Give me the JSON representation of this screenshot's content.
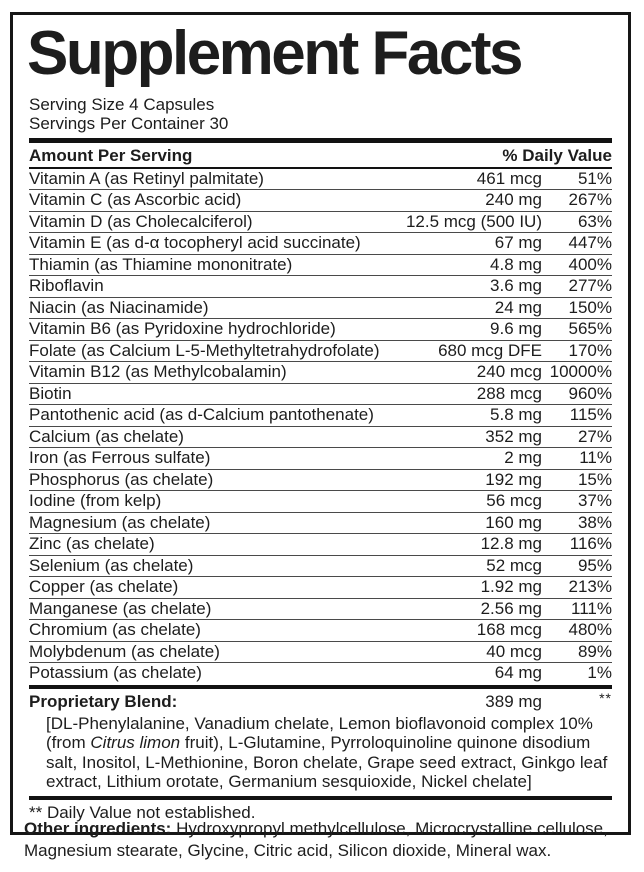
{
  "label": {
    "title": "Supplement Facts",
    "serving_size": "Serving Size 4 Capsules",
    "servings_per_container": "Servings Per Container 30",
    "columns": {
      "amount_header": "Amount Per Serving",
      "dv_header": "% Daily Value"
    },
    "rows": [
      {
        "name": "Vitamin A (as Retinyl palmitate)",
        "amount": "461 mcg",
        "dv": "51%"
      },
      {
        "name": "Vitamin C (as Ascorbic acid)",
        "amount": "240 mg",
        "dv": "267%"
      },
      {
        "name": "Vitamin D (as Cholecalciferol)",
        "amount": "12.5 mcg (500 IU)",
        "dv": "63%"
      },
      {
        "name": "Vitamin E (as d-α tocopheryl acid succinate)",
        "amount": "67 mg",
        "dv": "447%"
      },
      {
        "name": "Thiamin (as Thiamine mononitrate)",
        "amount": "4.8 mg",
        "dv": "400%"
      },
      {
        "name": "Riboflavin",
        "amount": "3.6 mg",
        "dv": "277%"
      },
      {
        "name": "Niacin (as Niacinamide)",
        "amount": "24 mg",
        "dv": "150%"
      },
      {
        "name": "Vitamin B6 (as Pyridoxine hydrochloride)",
        "amount": "9.6 mg",
        "dv": "565%"
      },
      {
        "name": "Folate (as Calcium L-5-Methyltetrahydrofolate)",
        "amount": "680 mcg DFE",
        "dv": "170%"
      },
      {
        "name": "Vitamin B12 (as Methylcobalamin)",
        "amount": "240 mcg",
        "dv": "10000%"
      },
      {
        "name": "Biotin",
        "amount": "288 mcg",
        "dv": "960%"
      },
      {
        "name": "Pantothenic acid (as d-Calcium pantothenate)",
        "amount": "5.8 mg",
        "dv": "115%"
      },
      {
        "name": "Calcium (as chelate)",
        "amount": "352 mg",
        "dv": "27%"
      },
      {
        "name": "Iron (as Ferrous sulfate)",
        "amount": "2 mg",
        "dv": "11%"
      },
      {
        "name": "Phosphorus (as chelate)",
        "amount": "192 mg",
        "dv": "15%"
      },
      {
        "name": "Iodine (from kelp)",
        "amount": "56 mcg",
        "dv": "37%"
      },
      {
        "name": "Magnesium (as chelate)",
        "amount": "160 mg",
        "dv": "38%"
      },
      {
        "name": "Zinc (as chelate)",
        "amount": "12.8 mg",
        "dv": "116%"
      },
      {
        "name": "Selenium (as chelate)",
        "amount": "52 mcg",
        "dv": "95%"
      },
      {
        "name": "Copper (as chelate)",
        "amount": "1.92 mg",
        "dv": "213%"
      },
      {
        "name": "Manganese (as chelate)",
        "amount": "2.56 mg",
        "dv": "111%"
      },
      {
        "name": "Chromium (as chelate)",
        "amount": "168 mcg",
        "dv": "480%"
      },
      {
        "name": "Molybdenum (as chelate)",
        "amount": "40 mcg",
        "dv": "89%"
      },
      {
        "name": "Potassium (as chelate)",
        "amount": "64 mg",
        "dv": "1%"
      }
    ],
    "blend": {
      "name": "Proprietary Blend:",
      "amount": "389 mg",
      "dv": "**",
      "ingredients_prefix": "[DL-Phenylalanine, Vanadium chelate, Lemon bioflavonoid complex 10% (from ",
      "ingredients_italic": "Citrus limon",
      "ingredients_suffix": " fruit), L-Glutamine, Pyrroloquinoline quinone disodium salt, Inositol, L-Methionine, Boron chelate, Grape seed extract, Ginkgo leaf extract, Lithium orotate, Germanium sesquioxide, Nickel chelate]"
    },
    "footnote": "** Daily Value not established."
  },
  "other_ingredients": {
    "label": "Other ingredients:",
    "text": " Hydroxypropyl methylcellulose, Microcrystalline cellulose, Magnesium stearate, Glycine, Citric acid, Silicon dioxide, Mineral wax."
  },
  "colors": {
    "text": "#1d1d1d",
    "rule": "#121212",
    "row_divider": "#4a4a4a",
    "background": "#ffffff"
  }
}
